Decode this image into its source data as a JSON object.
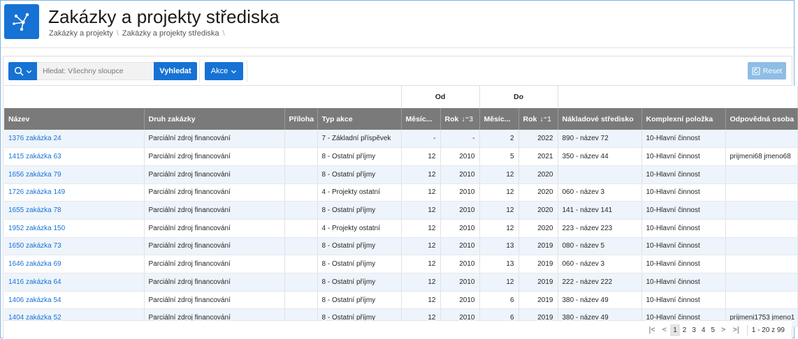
{
  "page": {
    "title": "Zakázky a projekty střediska",
    "breadcrumbs": [
      "Zakázky a projekty",
      "Zakázky a projekty střediska"
    ]
  },
  "toolbar": {
    "search_placeholder": "Hledat: Všechny sloupce",
    "search_button": "Vyhledat",
    "actions_button": "Akce",
    "reset_button": "Reset"
  },
  "table": {
    "group_headers": {
      "od": "Od",
      "do": "Do"
    },
    "columns": [
      "Název",
      "Druh zakázky",
      "Příloha",
      "Typ akce",
      "Měsíc...",
      "Rok",
      "Měsíc...",
      "Rok",
      "Nákladové středisko",
      "Komplexní položka",
      "Odpovědná osoba"
    ],
    "sort_indicators": {
      "od_rok": "↓⁼3",
      "do_rok": "↓⁼1"
    },
    "rows": [
      [
        "1376 zakázka 24",
        "Parciální zdroj financování",
        "",
        "7 - Základní příspěvek",
        "-",
        "-",
        "2",
        "2022",
        "890 - název 72",
        "10-Hlavní činnost",
        ""
      ],
      [
        "1415 zakázka 63",
        "Parciální zdroj financování",
        "",
        "8 - Ostatní příjmy",
        "12",
        "2010",
        "5",
        "2021",
        "350 - název 44",
        "10-Hlavní činnost",
        "prijmeni68 jmeno68"
      ],
      [
        "1656 zakázka 79",
        "Parciální zdroj financování",
        "",
        "8 - Ostatní příjmy",
        "12",
        "2010",
        "12",
        "2020",
        "",
        "10-Hlavní činnost",
        ""
      ],
      [
        "1726 zakázka 149",
        "Parciální zdroj financování",
        "",
        "4 - Projekty ostatní",
        "12",
        "2010",
        "12",
        "2020",
        "060 - název 3",
        "10-Hlavní činnost",
        ""
      ],
      [
        "1655 zakázka 78",
        "Parciální zdroj financování",
        "",
        "8 - Ostatní příjmy",
        "12",
        "2010",
        "12",
        "2020",
        "141 - název 141",
        "10-Hlavní činnost",
        ""
      ],
      [
        "1952 zakázka 150",
        "Parciální zdroj financování",
        "",
        "4 - Projekty ostatní",
        "12",
        "2010",
        "12",
        "2020",
        "223 - název 223",
        "10-Hlavní činnost",
        ""
      ],
      [
        "1650 zakázka 73",
        "Parciální zdroj financování",
        "",
        "8 - Ostatní příjmy",
        "12",
        "2010",
        "13",
        "2019",
        "080 - název 5",
        "10-Hlavní činnost",
        ""
      ],
      [
        "1646 zakázka 69",
        "Parciální zdroj financování",
        "",
        "8 - Ostatní příjmy",
        "12",
        "2010",
        "13",
        "2019",
        "060 - název 3",
        "10-Hlavní činnost",
        ""
      ],
      [
        "1416 zakázka 64",
        "Parciální zdroj financování",
        "",
        "8 - Ostatní příjmy",
        "12",
        "2010",
        "12",
        "2019",
        "222 - název 222",
        "10-Hlavní činnost",
        ""
      ],
      [
        "1406 zakázka 54",
        "Parciální zdroj financování",
        "",
        "8 - Ostatní příjmy",
        "12",
        "2010",
        "6",
        "2019",
        "380 - název 49",
        "10-Hlavní činnost",
        ""
      ],
      [
        "1404 zakázka 52",
        "Parciální zdroj financování",
        "",
        "8 - Ostatní příjmy",
        "12",
        "2010",
        "6",
        "2019",
        "380 - název 49",
        "10-Hlavní činnost",
        "prijmeni1753 jmeno1"
      ]
    ]
  },
  "pagination": {
    "pages": [
      "1",
      "2",
      "3",
      "4",
      "5"
    ],
    "current": "1",
    "range": "1 - 20 z 99"
  },
  "colors": {
    "accent": "#1672d4",
    "header_bg": "#7a7a7a",
    "stripe": "#eef4fb"
  },
  "icons": [
    "app-icon",
    "search-icon",
    "chevron-down-icon",
    "reset-icon",
    "first-page-icon",
    "prev-page-icon",
    "next-page-icon",
    "last-page-icon"
  ]
}
